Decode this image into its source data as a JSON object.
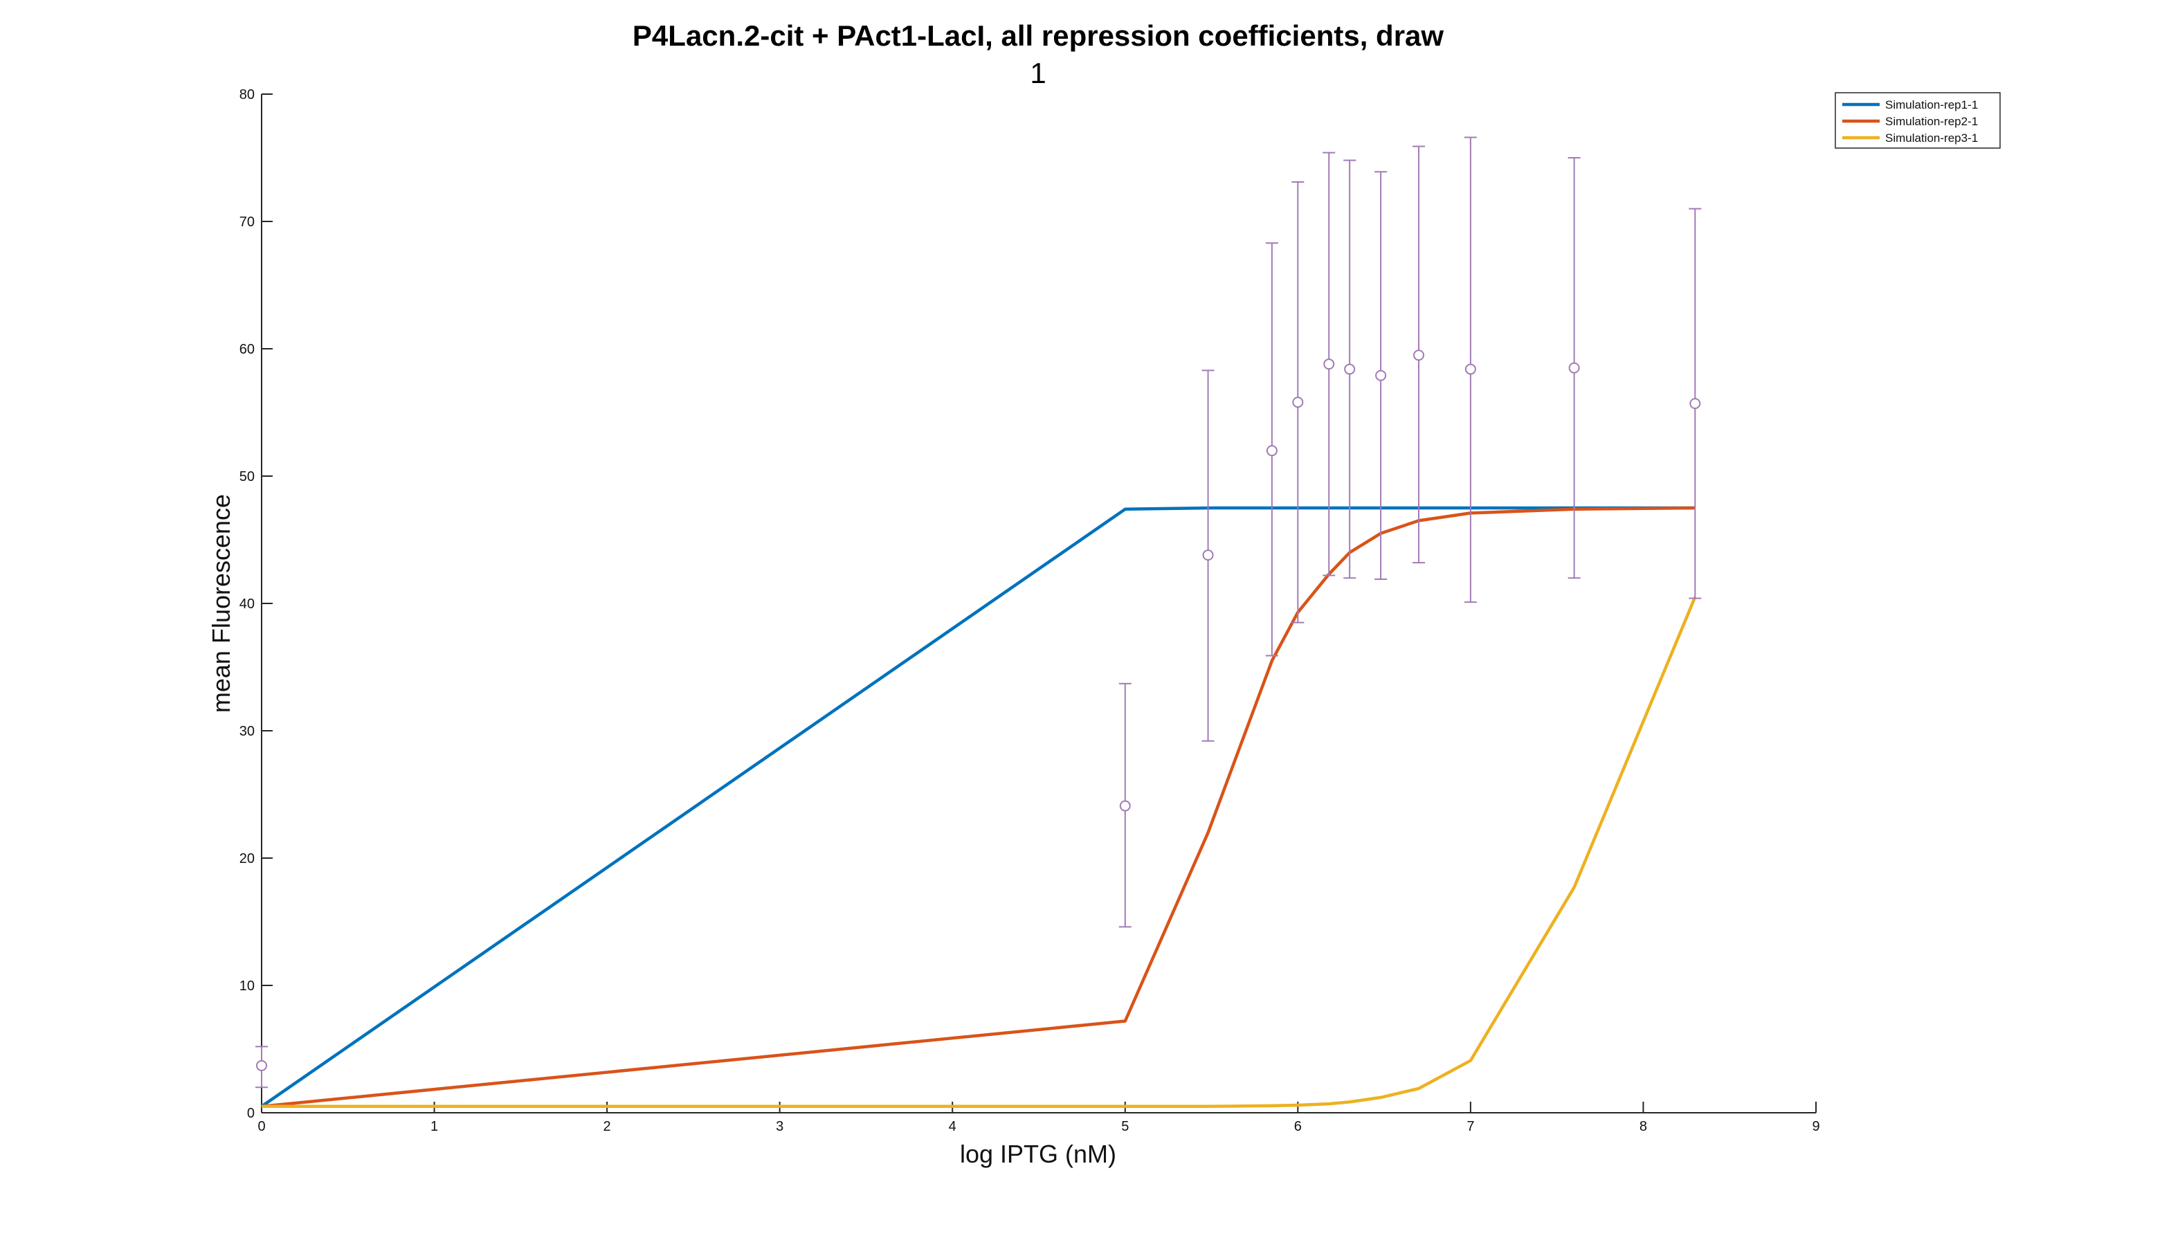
{
  "chart_data": {
    "type": "line",
    "title": "P4Lacn.2-cit + PAct1-LacI, all repression coefficients, draw",
    "subtitle": "1",
    "xlabel": "log IPTG (nM)",
    "ylabel": "mean Fluorescence",
    "xlim": [
      0,
      9
    ],
    "ylim": [
      0,
      80
    ],
    "xticks": [
      0,
      1,
      2,
      3,
      4,
      5,
      6,
      7,
      8,
      9
    ],
    "yticks": [
      0,
      10,
      20,
      30,
      40,
      50,
      60,
      70,
      80
    ],
    "xtick_labels": [
      "0",
      "1",
      "2",
      "3",
      "4",
      "5",
      "6",
      "7",
      "8",
      "9"
    ],
    "ytick_labels": [
      "0",
      "10",
      "20",
      "30",
      "40",
      "50",
      "60",
      "70",
      "80"
    ],
    "grid": false,
    "legend_position": "top-right",
    "series": [
      {
        "name": "Simulation-rep1-1",
        "color": "#0072BD",
        "x": [
          0,
          5,
          5.5,
          6,
          6.5,
          7,
          7.6,
          8.3
        ],
        "y": [
          0.5,
          47.4,
          47.5,
          47.5,
          47.5,
          47.5,
          47.5,
          47.5
        ]
      },
      {
        "name": "Simulation-rep2-1",
        "color": "#D95319",
        "x": [
          0,
          5,
          5.48,
          5.85,
          6,
          6.18,
          6.3,
          6.48,
          6.7,
          7,
          7.6,
          8.3
        ],
        "y": [
          0.5,
          7.2,
          22.0,
          35.5,
          39.3,
          42.3,
          44.0,
          45.5,
          46.5,
          47.1,
          47.4,
          47.5
        ]
      },
      {
        "name": "Simulation-rep3-1",
        "color": "#EDB120",
        "x": [
          0,
          5,
          5.48,
          5.85,
          6,
          6.18,
          6.3,
          6.48,
          6.7,
          7,
          7.6,
          8.3
        ],
        "y": [
          0.5,
          0.5,
          0.5,
          0.55,
          0.6,
          0.7,
          0.85,
          1.2,
          1.9,
          4.1,
          17.7,
          40.5
        ]
      }
    ],
    "error_data": {
      "color": "#A27BB5",
      "points": [
        {
          "x": 0,
          "y": 3.7,
          "lower": 2.0,
          "upper": 5.2
        },
        {
          "x": 5,
          "y": 24.1,
          "lower": 14.6,
          "upper": 33.7
        },
        {
          "x": 5.48,
          "y": 43.8,
          "lower": 29.2,
          "upper": 58.3
        },
        {
          "x": 5.85,
          "y": 52.0,
          "lower": 35.9,
          "upper": 68.3
        },
        {
          "x": 6,
          "y": 55.8,
          "lower": 38.5,
          "upper": 73.1
        },
        {
          "x": 6.18,
          "y": 58.8,
          "lower": 42.2,
          "upper": 75.4
        },
        {
          "x": 6.3,
          "y": 58.4,
          "lower": 42.0,
          "upper": 74.8
        },
        {
          "x": 6.48,
          "y": 57.9,
          "lower": 41.9,
          "upper": 73.9
        },
        {
          "x": 6.7,
          "y": 59.5,
          "lower": 43.2,
          "upper": 75.9
        },
        {
          "x": 7,
          "y": 58.4,
          "lower": 40.1,
          "upper": 76.6
        },
        {
          "x": 7.6,
          "y": 58.5,
          "lower": 42.0,
          "upper": 75.0
        },
        {
          "x": 8.3,
          "y": 55.7,
          "lower": 40.4,
          "upper": 71.0
        }
      ]
    }
  }
}
